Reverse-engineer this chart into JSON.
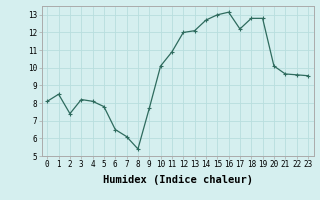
{
  "x": [
    0,
    1,
    2,
    3,
    4,
    5,
    6,
    7,
    8,
    9,
    10,
    11,
    12,
    13,
    14,
    15,
    16,
    17,
    18,
    19,
    20,
    21,
    22,
    23
  ],
  "y": [
    8.1,
    8.5,
    7.4,
    8.2,
    8.1,
    7.8,
    6.5,
    6.1,
    5.4,
    7.7,
    10.1,
    10.9,
    12.0,
    12.1,
    12.7,
    13.0,
    13.15,
    12.2,
    12.8,
    12.8,
    10.1,
    9.65,
    9.6,
    9.55
  ],
  "line_color": "#2e6b5e",
  "marker": "+",
  "marker_size": 3,
  "bg_color": "#d5efef",
  "grid_color": "#b8dede",
  "xlabel": "Humidex (Indice chaleur)",
  "xlim": [
    -0.5,
    23.5
  ],
  "ylim": [
    5,
    13.5
  ],
  "yticks": [
    5,
    6,
    7,
    8,
    9,
    10,
    11,
    12,
    13
  ],
  "xticks": [
    0,
    1,
    2,
    3,
    4,
    5,
    6,
    7,
    8,
    9,
    10,
    11,
    12,
    13,
    14,
    15,
    16,
    17,
    18,
    19,
    20,
    21,
    22,
    23
  ],
  "tick_fontsize": 5.5,
  "xlabel_fontsize": 7.5,
  "spine_color": "#aaaaaa",
  "linewidth": 0.9,
  "markeredgewidth": 0.8
}
